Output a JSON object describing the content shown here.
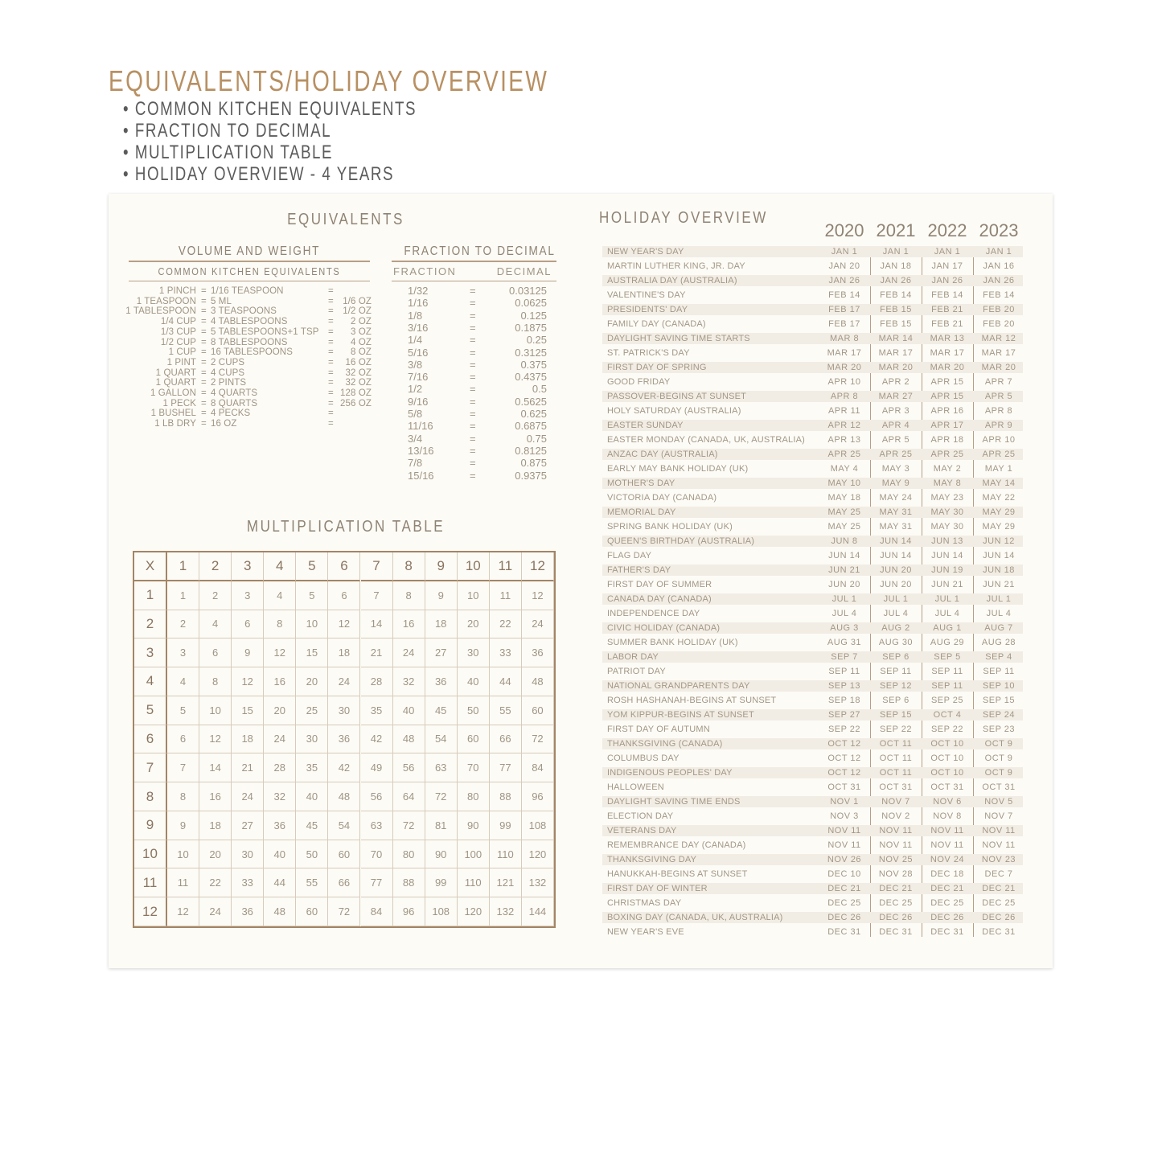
{
  "page": {
    "title": "EQUIVALENTS/HOLIDAY OVERVIEW",
    "bullets": [
      "• COMMON KITCHEN EQUIVALENTS",
      "• FRACTION TO DECIMAL",
      "• MULTIPLICATION TABLE",
      "• HOLIDAY OVERVIEW - 4 YEARS"
    ]
  },
  "colors": {
    "accent": "#b89062",
    "card": "#fcfbf6",
    "stripe": "#f2ede4",
    "text": "#a09584"
  },
  "equivalents": {
    "heading": "EQUIVALENTS",
    "volume": {
      "heading": "VOLUME AND WEIGHT",
      "subheading": "COMMON KITCHEN EQUIVALENTS",
      "rows": [
        [
          "1 PINCH",
          "1/16 TEASPOON",
          ""
        ],
        [
          "1 TEASPOON",
          "5 ML",
          "1/6 OZ"
        ],
        [
          "1 TABLESPOON",
          "3 TEASPOONS",
          "1/2 OZ"
        ],
        [
          "1/4 CUP",
          "4 TABLESPOONS",
          "2 OZ"
        ],
        [
          "1/3 CUP",
          "5 TABLESPOONS+1 TSP",
          "3 OZ"
        ],
        [
          "1/2 CUP",
          "8 TABLESPOONS",
          "4 OZ"
        ],
        [
          "1 CUP",
          "16 TABLESPOONS",
          "8 OZ"
        ],
        [
          "1 PINT",
          "2 CUPS",
          "16 OZ"
        ],
        [
          "1 QUART",
          "4 CUPS",
          "32 OZ"
        ],
        [
          "1 QUART",
          "2 PINTS",
          "32 OZ"
        ],
        [
          "1 GALLON",
          "4 QUARTS",
          "128 OZ"
        ],
        [
          "1 PECK",
          "8 QUARTS",
          "256 OZ"
        ],
        [
          "1 BUSHEL",
          "4 PECKS",
          ""
        ],
        [
          "1 LB DRY",
          "16 OZ",
          ""
        ]
      ]
    },
    "fraction": {
      "heading": "FRACTION TO DECIMAL",
      "col_fraction": "FRACTION",
      "col_decimal": "DECIMAL",
      "rows": [
        [
          "1/32",
          "0.03125"
        ],
        [
          "1/16",
          "0.0625"
        ],
        [
          "1/8",
          "0.125"
        ],
        [
          "3/16",
          "0.1875"
        ],
        [
          "1/4",
          "0.25"
        ],
        [
          "5/16",
          "0.3125"
        ],
        [
          "3/8",
          "0.375"
        ],
        [
          "7/16",
          "0.4375"
        ],
        [
          "1/2",
          "0.5"
        ],
        [
          "9/16",
          "0.5625"
        ],
        [
          "5/8",
          "0.625"
        ],
        [
          "11/16",
          "0.6875"
        ],
        [
          "3/4",
          "0.75"
        ],
        [
          "13/16",
          "0.8125"
        ],
        [
          "7/8",
          "0.875"
        ],
        [
          "15/16",
          "0.9375"
        ]
      ]
    },
    "eq": "="
  },
  "multiplication": {
    "heading": "MULTIPLICATION TABLE",
    "corner": "X",
    "size": 12
  },
  "holidays": {
    "heading": "HOLIDAY OVERVIEW",
    "years": [
      "2020",
      "2021",
      "2022",
      "2023"
    ],
    "rows": [
      [
        "NEW YEAR'S DAY",
        "JAN 1",
        "JAN 1",
        "JAN 1",
        "JAN 1"
      ],
      [
        "MARTIN LUTHER KING, JR. DAY",
        "JAN 20",
        "JAN 18",
        "JAN 17",
        "JAN 16"
      ],
      [
        "AUSTRALIA DAY (AUSTRALIA)",
        "JAN 26",
        "JAN 26",
        "JAN 26",
        "JAN 26"
      ],
      [
        "VALENTINE'S DAY",
        "FEB 14",
        "FEB 14",
        "FEB 14",
        "FEB 14"
      ],
      [
        "PRESIDENTS' DAY",
        "FEB 17",
        "FEB 15",
        "FEB 21",
        "FEB 20"
      ],
      [
        "FAMILY DAY (CANADA)",
        "FEB 17",
        "FEB 15",
        "FEB 21",
        "FEB 20"
      ],
      [
        "DAYLIGHT SAVING TIME STARTS",
        "MAR 8",
        "MAR 14",
        "MAR 13",
        "MAR 12"
      ],
      [
        "ST. PATRICK'S DAY",
        "MAR 17",
        "MAR 17",
        "MAR 17",
        "MAR 17"
      ],
      [
        "FIRST DAY OF SPRING",
        "MAR 20",
        "MAR 20",
        "MAR 20",
        "MAR 20"
      ],
      [
        "GOOD FRIDAY",
        "APR 10",
        "APR 2",
        "APR 15",
        "APR 7"
      ],
      [
        "PASSOVER-BEGINS AT SUNSET",
        "APR 8",
        "MAR 27",
        "APR 15",
        "APR 5"
      ],
      [
        "HOLY SATURDAY (AUSTRALIA)",
        "APR 11",
        "APR 3",
        "APR 16",
        "APR 8"
      ],
      [
        "EASTER SUNDAY",
        "APR 12",
        "APR 4",
        "APR 17",
        "APR 9"
      ],
      [
        "EASTER MONDAY (CANADA, UK, AUSTRALIA)",
        "APR 13",
        "APR 5",
        "APR 18",
        "APR 10"
      ],
      [
        "ANZAC DAY (AUSTRALIA)",
        "APR 25",
        "APR 25",
        "APR 25",
        "APR 25"
      ],
      [
        "EARLY MAY BANK HOLIDAY (UK)",
        "MAY 4",
        "MAY 3",
        "MAY 2",
        "MAY 1"
      ],
      [
        "MOTHER'S DAY",
        "MAY 10",
        "MAY 9",
        "MAY 8",
        "MAY 14"
      ],
      [
        "VICTORIA DAY (CANADA)",
        "MAY 18",
        "MAY 24",
        "MAY 23",
        "MAY 22"
      ],
      [
        "MEMORIAL DAY",
        "MAY 25",
        "MAY 31",
        "MAY 30",
        "MAY 29"
      ],
      [
        "SPRING BANK HOLIDAY (UK)",
        "MAY 25",
        "MAY 31",
        "MAY 30",
        "MAY 29"
      ],
      [
        "QUEEN'S BIRTHDAY (AUSTRALIA)",
        "JUN 8",
        "JUN 14",
        "JUN 13",
        "JUN 12"
      ],
      [
        "FLAG DAY",
        "JUN 14",
        "JUN 14",
        "JUN 14",
        "JUN 14"
      ],
      [
        "FATHER'S DAY",
        "JUN 21",
        "JUN 20",
        "JUN 19",
        "JUN 18"
      ],
      [
        "FIRST DAY OF SUMMER",
        "JUN 20",
        "JUN 20",
        "JUN 21",
        "JUN 21"
      ],
      [
        "CANADA DAY (CANADA)",
        "JUL 1",
        "JUL 1",
        "JUL 1",
        "JUL 1"
      ],
      [
        "INDEPENDENCE DAY",
        "JUL 4",
        "JUL 4",
        "JUL 4",
        "JUL 4"
      ],
      [
        "CIVIC HOLIDAY (CANADA)",
        "AUG 3",
        "AUG 2",
        "AUG 1",
        "AUG 7"
      ],
      [
        "SUMMER BANK HOLIDAY (UK)",
        "AUG 31",
        "AUG 30",
        "AUG 29",
        "AUG 28"
      ],
      [
        "LABOR DAY",
        "SEP 7",
        "SEP 6",
        "SEP 5",
        "SEP 4"
      ],
      [
        "PATRIOT DAY",
        "SEP 11",
        "SEP 11",
        "SEP 11",
        "SEP 11"
      ],
      [
        "NATIONAL GRANDPARENTS DAY",
        "SEP 13",
        "SEP 12",
        "SEP 11",
        "SEP 10"
      ],
      [
        "ROSH HASHANAH-BEGINS AT SUNSET",
        "SEP 18",
        "SEP 6",
        "SEP 25",
        "SEP 15"
      ],
      [
        "YOM KIPPUR-BEGINS AT SUNSET",
        "SEP 27",
        "SEP 15",
        "OCT 4",
        "SEP 24"
      ],
      [
        "FIRST DAY OF AUTUMN",
        "SEP 22",
        "SEP 22",
        "SEP 22",
        "SEP 23"
      ],
      [
        "THANKSGIVING (CANADA)",
        "OCT 12",
        "OCT 11",
        "OCT 10",
        "OCT 9"
      ],
      [
        "COLUMBUS DAY",
        "OCT 12",
        "OCT 11",
        "OCT 10",
        "OCT 9"
      ],
      [
        "INDIGENOUS PEOPLES' DAY",
        "OCT 12",
        "OCT 11",
        "OCT 10",
        "OCT 9"
      ],
      [
        "HALLOWEEN",
        "OCT 31",
        "OCT 31",
        "OCT 31",
        "OCT 31"
      ],
      [
        "DAYLIGHT SAVING TIME ENDS",
        "NOV 1",
        "NOV 7",
        "NOV 6",
        "NOV 5"
      ],
      [
        "ELECTION DAY",
        "NOV 3",
        "NOV 2",
        "NOV 8",
        "NOV 7"
      ],
      [
        "VETERANS DAY",
        "NOV 11",
        "NOV 11",
        "NOV 11",
        "NOV 11"
      ],
      [
        "REMEMBRANCE DAY (CANADA)",
        "NOV 11",
        "NOV 11",
        "NOV 11",
        "NOV 11"
      ],
      [
        "THANKSGIVING DAY",
        "NOV 26",
        "NOV 25",
        "NOV 24",
        "NOV 23"
      ],
      [
        "HANUKKAH-BEGINS AT SUNSET",
        "DEC 10",
        "NOV 28",
        "DEC 18",
        "DEC 7"
      ],
      [
        "FIRST DAY OF WINTER",
        "DEC 21",
        "DEC 21",
        "DEC 21",
        "DEC 21"
      ],
      [
        "CHRISTMAS DAY",
        "DEC 25",
        "DEC 25",
        "DEC 25",
        "DEC 25"
      ],
      [
        "BOXING DAY (CANADA, UK, AUSTRALIA)",
        "DEC 26",
        "DEC 26",
        "DEC 26",
        "DEC 26"
      ],
      [
        "NEW YEAR'S EVE",
        "DEC 31",
        "DEC 31",
        "DEC 31",
        "DEC 31"
      ]
    ]
  }
}
